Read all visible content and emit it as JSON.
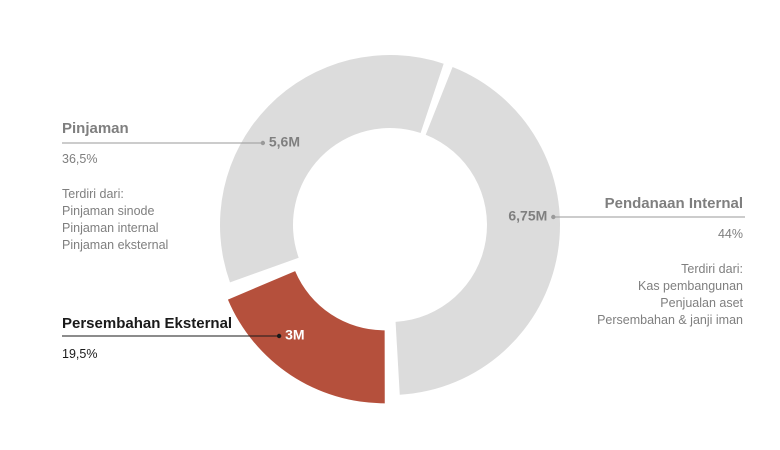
{
  "chart_data": {
    "type": "pie",
    "variant": "donut",
    "segments": [
      {
        "value_label": "6,75M",
        "value": 6.75,
        "name": "Pendanaan Internal",
        "percent_label": "44%",
        "percent": 44,
        "details_heading": "Terdiri dari:",
        "details": [
          "Kas pembangunan",
          "Penjualan aset",
          "Persembahan & janji iman"
        ],
        "color": "#dcdcdc",
        "label_color": "#7f7f7f",
        "exploded": false
      },
      {
        "value_label": "3M",
        "value": 3,
        "name": "Persembahan Eksternal",
        "percent_label": "19,5%",
        "percent": 19.5,
        "details_heading": "",
        "details": [],
        "color": "#b5503c",
        "label_color": "#ffffff",
        "exploded": true
      },
      {
        "value_label": "5,6M",
        "value": 5.6,
        "name": "Pinjaman",
        "percent_label": "36,5%",
        "percent": 36.5,
        "details_heading": "Terdiri dari:",
        "details": [
          "Pinjaman sinode",
          "Pinjaman internal",
          "Pinjaman eksternal"
        ],
        "color": "#dcdcdc",
        "label_color": "#7f7f7f",
        "exploded": false
      }
    ],
    "start_angle_deg": 20,
    "direction": "clockwise",
    "leader_color_grey": "#9a9a9a",
    "leader_color_dark": "#1a1a1a"
  }
}
